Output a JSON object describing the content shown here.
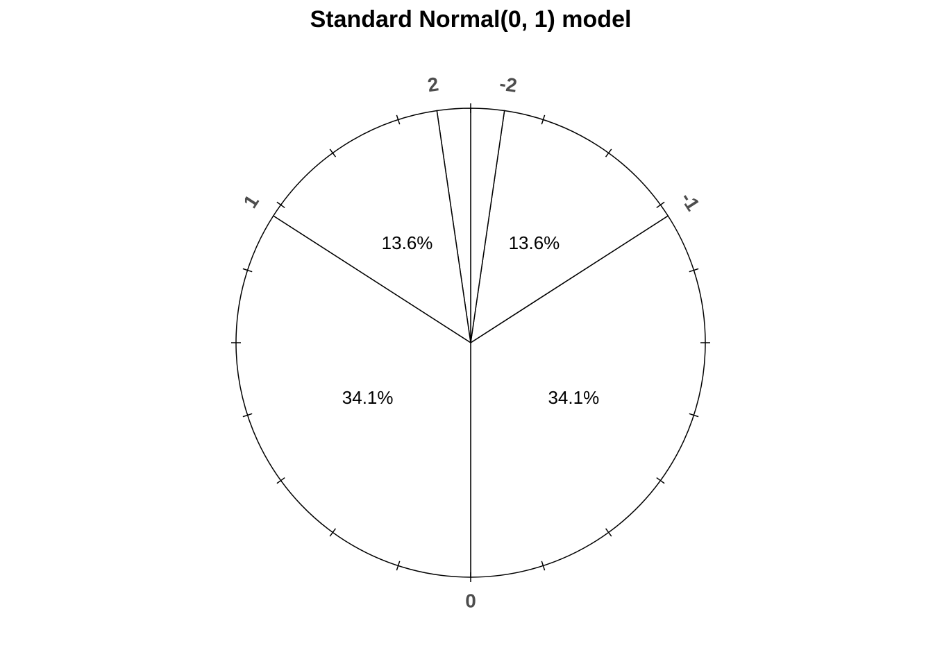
{
  "chart_data": {
    "type": "pie",
    "title": "Standard Normal(0, 1) model",
    "values": [
      34.1,
      13.6,
      2.3,
      2.3,
      13.6,
      34.1
    ],
    "value_labels": [
      "34.1%",
      "13.6%",
      null,
      null,
      "13.6%",
      "34.1%"
    ],
    "boundary_labels": [
      "0",
      "-1",
      "-2",
      null,
      "2",
      "1"
    ],
    "color": "#ffffff"
  }
}
